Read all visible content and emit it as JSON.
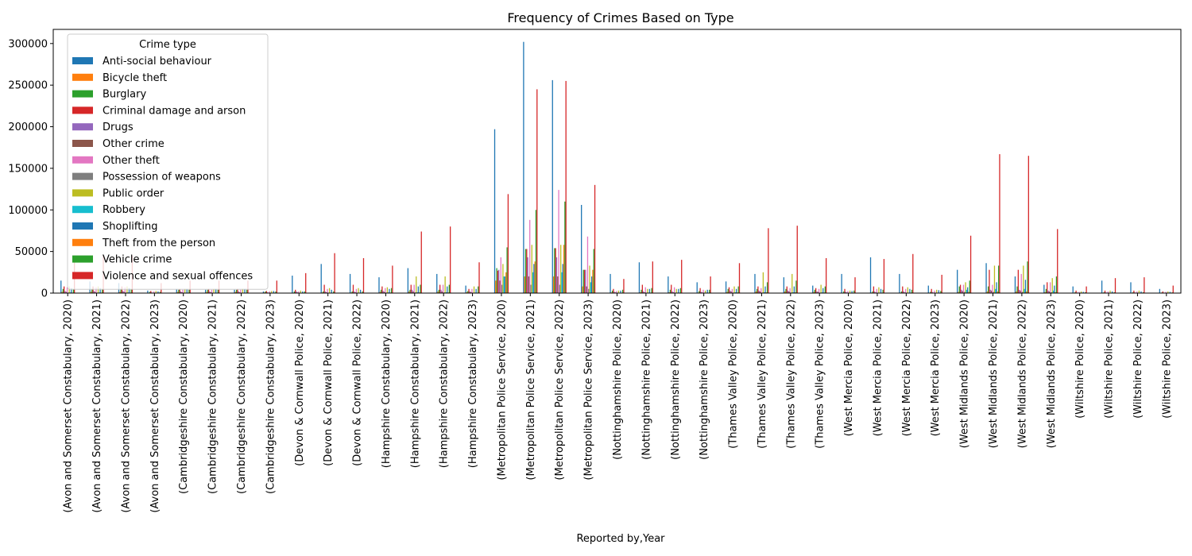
{
  "chart_data": {
    "type": "bar",
    "title": "Frequency of Crimes Based on Type",
    "xlabel": "Reported by,Year",
    "ylabel": "",
    "ylim": [
      0,
      317000
    ],
    "yticks": [
      0,
      50000,
      100000,
      150000,
      200000,
      250000,
      300000
    ],
    "legend_title": "Crime type",
    "legend_position": "top-left",
    "grid": false,
    "categories": [
      "(Avon and Somerset Constabulary, 2020)",
      "(Avon and Somerset Constabulary, 2021)",
      "(Avon and Somerset Constabulary, 2022)",
      "(Avon and Somerset Constabulary, 2023)",
      "(Cambridgeshire Constabulary, 2020)",
      "(Cambridgeshire Constabulary, 2021)",
      "(Cambridgeshire Constabulary, 2022)",
      "(Cambridgeshire Constabulary, 2023)",
      "(Devon & Cornwall Police, 2020)",
      "(Devon & Cornwall Police, 2021)",
      "(Devon & Cornwall Police, 2022)",
      "(Hampshire Constabulary, 2020)",
      "(Hampshire Constabulary, 2021)",
      "(Hampshire Constabulary, 2022)",
      "(Hampshire Constabulary, 2023)",
      "(Metropolitan Police Service, 2020)",
      "(Metropolitan Police Service, 2021)",
      "(Metropolitan Police Service, 2022)",
      "(Metropolitan Police Service, 2023)",
      "(Nottinghamshire Police, 2020)",
      "(Nottinghamshire Police, 2021)",
      "(Nottinghamshire Police, 2022)",
      "(Nottinghamshire Police, 2023)",
      "(Thames Valley Police, 2020)",
      "(Thames Valley Police, 2021)",
      "(Thames Valley Police, 2022)",
      "(Thames Valley Police, 2023)",
      "(West Mercia Police, 2020)",
      "(West Mercia Police, 2021)",
      "(West Mercia Police, 2022)",
      "(West Mercia Police, 2023)",
      "(West Midlands Police, 2020)",
      "(West Midlands Police, 2021)",
      "(West Midlands Police, 2022)",
      "(West Midlands Police, 2023)",
      "(Wiltshire Police, 2020)",
      "(Wiltshire Police, 2021)",
      "(Wiltshire Police, 2022)",
      "(Wiltshire Police, 2023)"
    ],
    "series": [
      {
        "name": "Anti-social behaviour",
        "color": "#1f77b4",
        "values": [
          15000,
          14000,
          12000,
          3000,
          5000,
          4000,
          4000,
          2000,
          21000,
          35000,
          23000,
          19000,
          30000,
          23000,
          9000,
          197000,
          302000,
          256000,
          106000,
          23000,
          37000,
          20000,
          13000,
          14000,
          23000,
          19000,
          9000,
          23000,
          43000,
          23000,
          9000,
          28000,
          36000,
          20000,
          10000,
          8000,
          15000,
          13000,
          5000
        ]
      },
      {
        "name": "Bicycle theft",
        "color": "#ff7f0e",
        "values": [
          1500,
          1500,
          1500,
          500,
          1500,
          1500,
          1500,
          800,
          500,
          800,
          700,
          1500,
          2000,
          2000,
          1200,
          15000,
          20000,
          20000,
          8000,
          800,
          1000,
          1000,
          700,
          1500,
          2000,
          2000,
          1500,
          500,
          600,
          600,
          400,
          1500,
          2000,
          2000,
          1200,
          300,
          400,
          400,
          300
        ]
      },
      {
        "name": "Burglary",
        "color": "#2ca02c",
        "values": [
          5000,
          5000,
          5000,
          1500,
          4000,
          4000,
          4000,
          2000,
          2000,
          2000,
          2000,
          4000,
          4000,
          4000,
          2500,
          30000,
          53000,
          54000,
          28000,
          3000,
          4000,
          4000,
          2500,
          5000,
          5000,
          5000,
          4000,
          2000,
          2000,
          2000,
          1500,
          8000,
          8000,
          8000,
          5000,
          1000,
          1000,
          1000,
          700
        ]
      },
      {
        "name": "Criminal damage and arson",
        "color": "#d62728",
        "values": [
          8000,
          8000,
          8000,
          2500,
          5000,
          5000,
          5000,
          2500,
          4000,
          10000,
          10000,
          8000,
          10000,
          10000,
          5000,
          27000,
          53000,
          54000,
          28000,
          5000,
          10000,
          10000,
          6000,
          7000,
          8000,
          8000,
          6000,
          5000,
          8000,
          8000,
          5000,
          10000,
          28000,
          28000,
          13000,
          3000,
          3000,
          3000,
          2000
        ]
      },
      {
        "name": "Drugs",
        "color": "#9467bd",
        "values": [
          2500,
          2500,
          2500,
          800,
          2000,
          2000,
          2000,
          1000,
          2000,
          2000,
          2000,
          2500,
          4000,
          4000,
          2000,
          28000,
          43000,
          43000,
          28000,
          1500,
          2000,
          2000,
          1500,
          3000,
          3000,
          3000,
          2000,
          1500,
          2000,
          2000,
          1200,
          4000,
          4000,
          4000,
          3000,
          800,
          800,
          800,
          600
        ]
      },
      {
        "name": "Other crime",
        "color": "#8c564b",
        "values": [
          1500,
          1500,
          1500,
          500,
          1000,
          1000,
          1000,
          500,
          800,
          1000,
          1000,
          1500,
          2000,
          2000,
          1200,
          15000,
          20000,
          20000,
          8000,
          800,
          1000,
          1000,
          700,
          2000,
          2000,
          2000,
          1500,
          700,
          800,
          800,
          600,
          2500,
          3000,
          3000,
          2000,
          400,
          500,
          500,
          400
        ]
      },
      {
        "name": "Other theft",
        "color": "#e377c2",
        "values": [
          7000,
          7000,
          7000,
          2000,
          4000,
          4000,
          4000,
          2000,
          2000,
          5000,
          5000,
          6000,
          10000,
          10000,
          5000,
          43000,
          88000,
          124000,
          68000,
          2500,
          7000,
          7000,
          4000,
          5000,
          6000,
          6000,
          5000,
          2500,
          5000,
          5000,
          3000,
          10000,
          10000,
          23000,
          13000,
          1500,
          2000,
          2000,
          1500
        ]
      },
      {
        "name": "Possession of weapons",
        "color": "#7f7f7f",
        "values": [
          600,
          600,
          600,
          200,
          400,
          400,
          400,
          200,
          300,
          400,
          400,
          600,
          800,
          800,
          400,
          10000,
          10000,
          10000,
          5000,
          300,
          400,
          400,
          300,
          600,
          600,
          600,
          400,
          300,
          400,
          400,
          300,
          1500,
          1500,
          1500,
          1000,
          200,
          200,
          200,
          150
        ]
      },
      {
        "name": "Public order",
        "color": "#bcbd22",
        "values": [
          8000,
          8000,
          8000,
          2500,
          5000,
          5000,
          5000,
          2500,
          3000,
          6000,
          6000,
          7000,
          20000,
          20000,
          8000,
          35000,
          58000,
          58000,
          33000,
          3000,
          5000,
          5000,
          3000,
          8000,
          25000,
          23000,
          10000,
          3000,
          7000,
          7000,
          4000,
          13000,
          33000,
          33000,
          18000,
          2000,
          3000,
          3000,
          2000
        ]
      },
      {
        "name": "Robbery",
        "color": "#17becf",
        "values": [
          800,
          800,
          800,
          300,
          500,
          500,
          500,
          300,
          300,
          400,
          400,
          800,
          1000,
          1000,
          600,
          20000,
          25000,
          25000,
          13000,
          500,
          600,
          600,
          400,
          1000,
          1000,
          1000,
          800,
          300,
          400,
          400,
          300,
          4000,
          5000,
          5000,
          3000,
          200,
          200,
          200,
          150
        ]
      },
      {
        "name": "Shoplifting",
        "color": "#1f77b4",
        "values": [
          6000,
          6000,
          6000,
          2000,
          5000,
          5000,
          5000,
          2500,
          2000,
          4000,
          4000,
          5000,
          8000,
          8000,
          5000,
          20000,
          35000,
          35000,
          20000,
          3000,
          5000,
          5000,
          4000,
          5000,
          8000,
          8000,
          6000,
          2500,
          5000,
          5000,
          3500,
          7000,
          13000,
          16000,
          9000,
          1500,
          2000,
          2000,
          1500
        ]
      },
      {
        "name": "Theft from the person",
        "color": "#ff7f0e",
        "values": [
          600,
          600,
          600,
          200,
          400,
          400,
          400,
          200,
          200,
          300,
          300,
          600,
          800,
          800,
          500,
          25000,
          38000,
          58000,
          28000,
          400,
          500,
          500,
          400,
          800,
          900,
          900,
          700,
          300,
          400,
          400,
          300,
          1500,
          2000,
          2000,
          1200,
          150,
          150,
          150,
          100
        ]
      },
      {
        "name": "Vehicle crime",
        "color": "#2ca02c",
        "values": [
          5000,
          5000,
          5000,
          1500,
          4000,
          4000,
          4000,
          2000,
          2000,
          2000,
          2000,
          6000,
          10000,
          10000,
          8000,
          55000,
          100000,
          110000,
          53000,
          4000,
          6000,
          6000,
          4000,
          8000,
          13000,
          15000,
          8000,
          3000,
          4000,
          4000,
          2500,
          15000,
          33000,
          38000,
          20000,
          1000,
          1000,
          1000,
          800
        ]
      },
      {
        "name": "Violence and sexual offences",
        "color": "#d62728",
        "values": [
          45000,
          45000,
          45000,
          12000,
          15000,
          15000,
          15000,
          15000,
          24000,
          48000,
          42000,
          33000,
          74000,
          80000,
          37000,
          119000,
          245000,
          255000,
          130000,
          17000,
          38000,
          40000,
          20000,
          36000,
          78000,
          81000,
          42000,
          19000,
          41000,
          47000,
          22000,
          69000,
          167000,
          165000,
          77000,
          8000,
          18000,
          19000,
          9000
        ]
      }
    ]
  }
}
